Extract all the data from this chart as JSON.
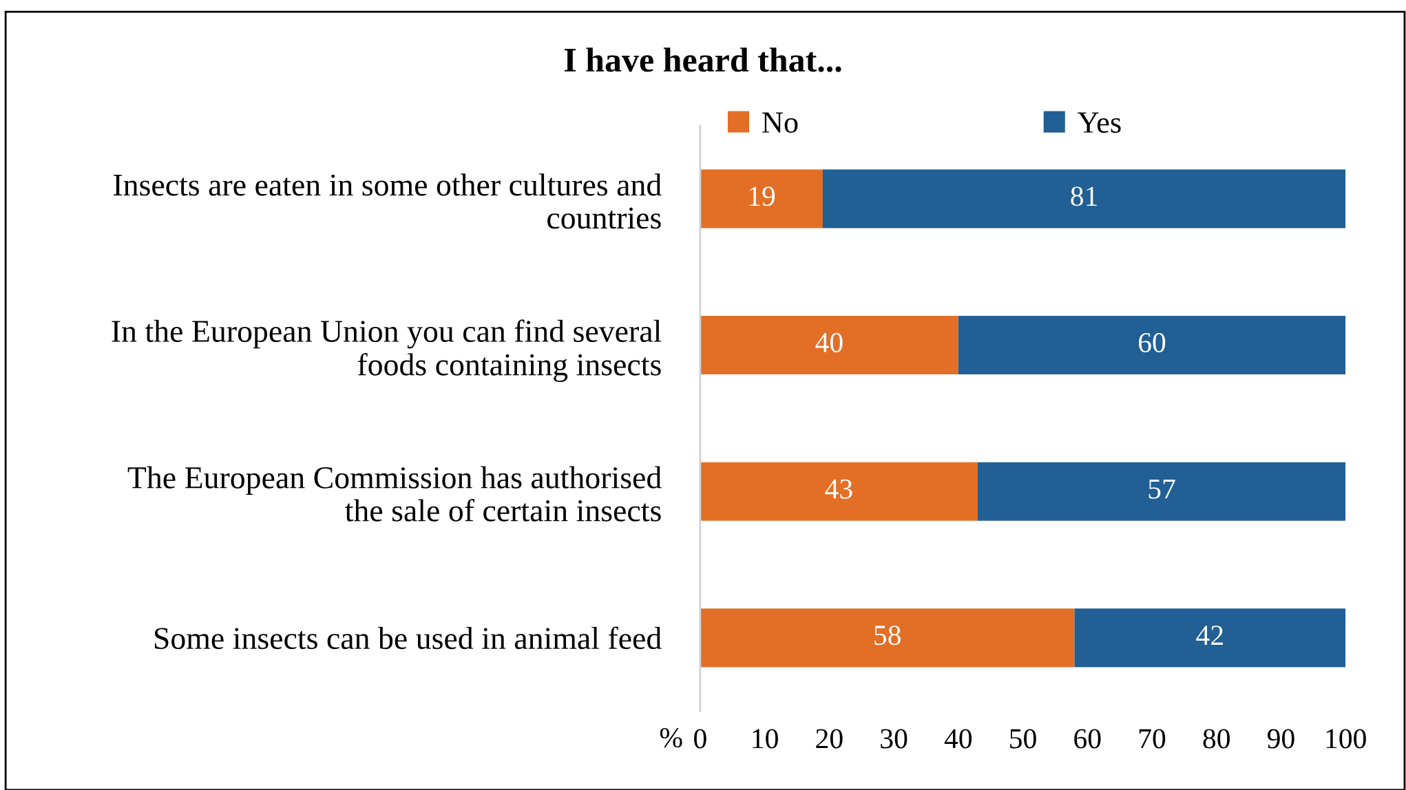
{
  "chart_data": {
    "type": "bar",
    "orientation": "horizontal",
    "stacked": true,
    "title": "I have heard that...",
    "xlabel": "%",
    "categories": [
      "Insects are eaten in some other cultures and\ncountries",
      "In the European Union you can find several\nfoods containing insects",
      "The European Commission has authorised\nthe sale of certain insects",
      "Some insects can be used in animal feed"
    ],
    "series": [
      {
        "name": "No",
        "color": "#e36f26",
        "values": [
          19,
          40,
          43,
          58
        ]
      },
      {
        "name": "Yes",
        "color": "#215f94",
        "values": [
          81,
          60,
          57,
          42
        ]
      }
    ],
    "xlim": [
      0,
      100
    ],
    "xticks": [
      0,
      10,
      20,
      30,
      40,
      50,
      60,
      70,
      80,
      90,
      100
    ],
    "data_labels": true,
    "legend": "top left",
    "grid": false
  }
}
